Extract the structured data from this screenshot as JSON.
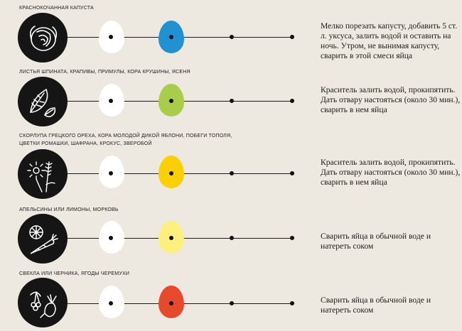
{
  "rows": [
    {
      "source": "КРАСНОКОЧАННАЯ КАПУСТА",
      "icon": "cabbage-icon",
      "egg_color": "#2291d1",
      "instruction": "Мелко порезать капусту, добавить 5 ст. л. уксуса, залить водой и оставить на ночь. Утром, не вынимая капусту, сварить в этой смеси яйца"
    },
    {
      "source": "ЛИСТЬЯ ШПИНАТА, КРАПИВЫ, ПРИМУЛЫ, КОРА КРУШИНЫ, ЯСЕНЯ",
      "icon": "leaves-icon",
      "egg_color": "#a9cd4a",
      "instruction": "Краситель залить водой, прокипятить. Дать отвару настояться (около 30 мин.), сварить в нем яйца"
    },
    {
      "source": "СКОРЛУПА ГРЕЦКОГО ОРЕХА, КОРА МОЛОДОЙ ДИКОЙ ЯБЛОНИ, ПОБЕГИ ТОПОЛЯ, ЦВЕТКИ РОМАШКИ, ШАФРАНА, КРОКУС, ЗВЕРОБОЙ",
      "icon": "flowers-icon",
      "egg_color": "#fad000",
      "instruction": "Краситель залить водой, прокипятить. Дать отвару настояться (около 30 мин.), сварить в нем яйца"
    },
    {
      "source": "АПЕЛЬСИНЫ ИЛИ ЛИМОНЫ, МОРКОВЬ",
      "icon": "citrus-carrot-icon",
      "egg_color": "#fdf07e",
      "instruction": "Сварить яйца в обычной воде и натереть соком"
    },
    {
      "source": "СВЕКЛА ИЛИ ЧЕРНИКА, ЯГОДЫ ЧЕРЕМУХИ",
      "icon": "beet-berries-icon",
      "egg_color": "#e64a2b",
      "instruction": "Сварить яйца в обычной воде и натереть соком"
    }
  ],
  "white_egg_color": "#ffffff"
}
